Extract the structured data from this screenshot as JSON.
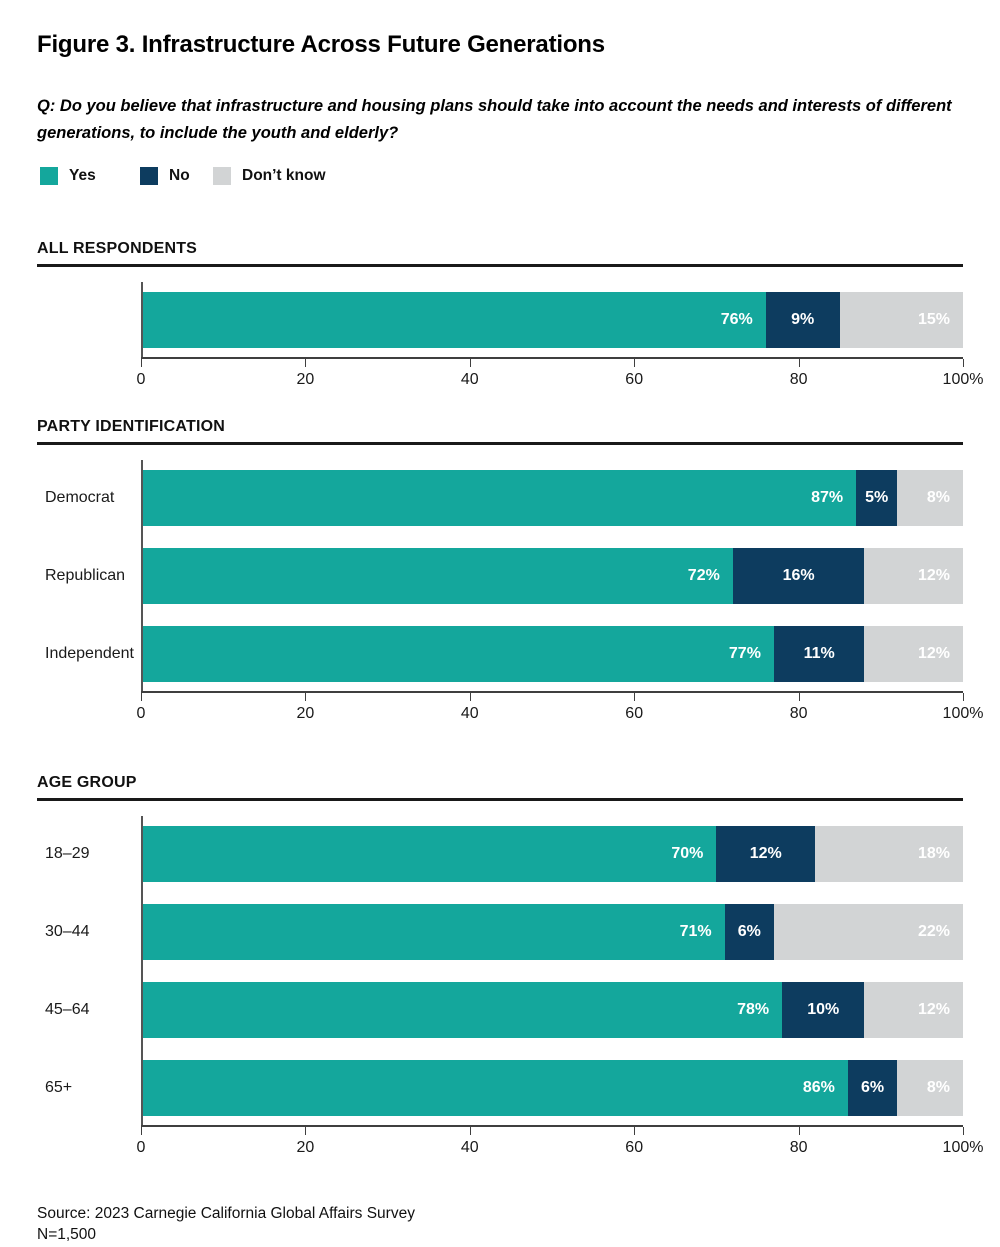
{
  "figure": {
    "title": "Figure 3. Infrastructure Across Future Generations",
    "question": {
      "line1": "Q: Do you believe that infrastructure and housing plans should take into account the needs and interests of different",
      "line2": "generations, to include the youth and elderly?"
    }
  },
  "legend": {
    "items": [
      {
        "label": "Yes",
        "color": "#14a79c"
      },
      {
        "label": "No",
        "color": "#0d3c5f"
      },
      {
        "label": "Don’t know",
        "color": "#d2d4d5"
      }
    ]
  },
  "chart_data": [
    {
      "type": "bar",
      "orientation": "horizontal",
      "stacked": true,
      "section": "ALL RESPONDENTS",
      "categories": [
        ""
      ],
      "series": [
        {
          "name": "Yes",
          "values": [
            76
          ]
        },
        {
          "name": "No",
          "values": [
            9
          ]
        },
        {
          "name": "Don't know",
          "values": [
            15
          ]
        }
      ],
      "xlim": [
        0,
        100
      ],
      "xticks": [
        "0",
        "20",
        "40",
        "60",
        "80",
        "100%"
      ],
      "grid": false,
      "legend_position": "top"
    },
    {
      "type": "bar",
      "orientation": "horizontal",
      "stacked": true,
      "section": "PARTY IDENTIFICATION",
      "categories": [
        "Democrat",
        "Republican",
        "Independent"
      ],
      "series": [
        {
          "name": "Yes",
          "values": [
            87,
            72,
            77
          ]
        },
        {
          "name": "No",
          "values": [
            5,
            16,
            11
          ]
        },
        {
          "name": "Don't know",
          "values": [
            8,
            12,
            12
          ]
        }
      ],
      "xlim": [
        0,
        100
      ],
      "xticks": [
        "0",
        "20",
        "40",
        "60",
        "80",
        "100%"
      ],
      "grid": false,
      "legend_position": "top"
    },
    {
      "type": "bar",
      "orientation": "horizontal",
      "stacked": true,
      "section": "AGE GROUP",
      "categories": [
        "18–29",
        "30–44",
        "45–64",
        "65+"
      ],
      "series": [
        {
          "name": "Yes",
          "values": [
            70,
            71,
            78,
            86
          ]
        },
        {
          "name": "No",
          "values": [
            12,
            6,
            10,
            6
          ]
        },
        {
          "name": "Don't know",
          "values": [
            18,
            22,
            12,
            8
          ]
        }
      ],
      "xlim": [
        0,
        100
      ],
      "xticks": [
        "0",
        "20",
        "40",
        "60",
        "80",
        "100%"
      ],
      "grid": false,
      "legend_position": "top"
    }
  ],
  "footer": {
    "source": "Source: 2023 Carnegie California Global Affairs Survey",
    "n": "N=1,500"
  }
}
